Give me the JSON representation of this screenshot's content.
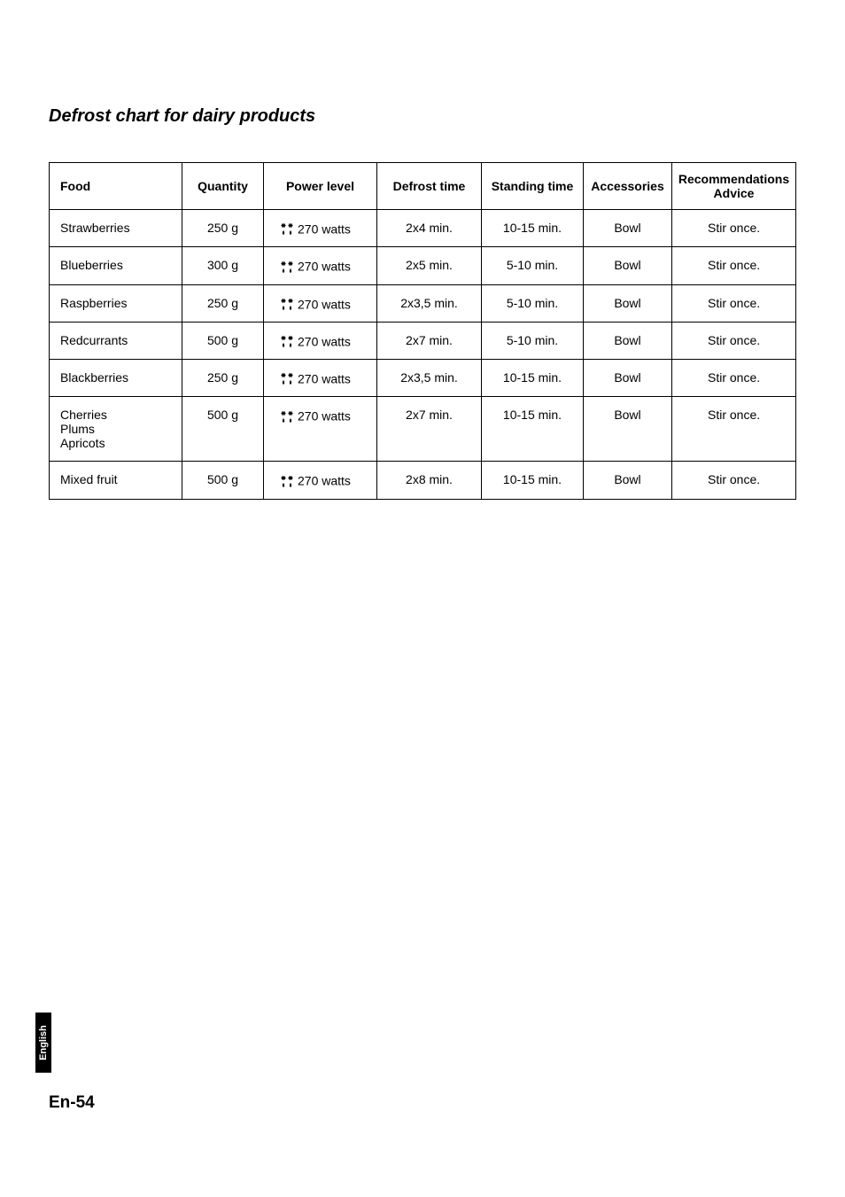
{
  "heading": "Defrost chart for dairy products",
  "columns": {
    "food": "Food",
    "quantity": "Quantity",
    "power": "Power level",
    "defrost": "Defrost time",
    "standing": "Standing time",
    "accessories": "Accessories",
    "advice": "Recommendations Advice"
  },
  "rows": [
    {
      "food": "Strawberries",
      "quantity": "250 g",
      "power": "270 watts",
      "defrost": "2x4 min.",
      "standing": "10-15 min.",
      "accessories": "Bowl",
      "advice": "Stir once."
    },
    {
      "food": "Blueberries",
      "quantity": "300 g",
      "power": "270 watts",
      "defrost": "2x5 min.",
      "standing": "5-10 min.",
      "accessories": "Bowl",
      "advice": "Stir once."
    },
    {
      "food": "Raspberries",
      "quantity": "250 g",
      "power": "270 watts",
      "defrost": "2x3,5 min.",
      "standing": "5-10 min.",
      "accessories": "Bowl",
      "advice": "Stir once."
    },
    {
      "food": "Redcurrants",
      "quantity": "500 g",
      "power": "270 watts",
      "defrost": "2x7 min.",
      "standing": "5-10 min.",
      "accessories": "Bowl",
      "advice": "Stir once."
    },
    {
      "food": "Blackberries",
      "quantity": "250 g",
      "power": "270 watts",
      "defrost": "2x3,5 min.",
      "standing": "10-15 min.",
      "accessories": "Bowl",
      "advice": "Stir once."
    },
    {
      "food": "Cherries\nPlums\nApricots",
      "quantity": "500 g",
      "power": "270 watts",
      "defrost": "2x7 min.",
      "standing": "10-15 min.",
      "accessories": "Bowl",
      "advice": "Stir once."
    },
    {
      "food": "Mixed fruit",
      "quantity": "500 g",
      "power": "270 watts",
      "defrost": "2x8 min.",
      "standing": "10-15 min.",
      "accessories": "Bowl",
      "advice": "Stir once."
    }
  ],
  "side_tab": "English",
  "page_num": "En-54",
  "icon_name": "defrost-icon",
  "colors": {
    "text": "#000000",
    "background": "#ffffff",
    "tab_bg": "#000000",
    "tab_text": "#ffffff",
    "border": "#000000"
  }
}
